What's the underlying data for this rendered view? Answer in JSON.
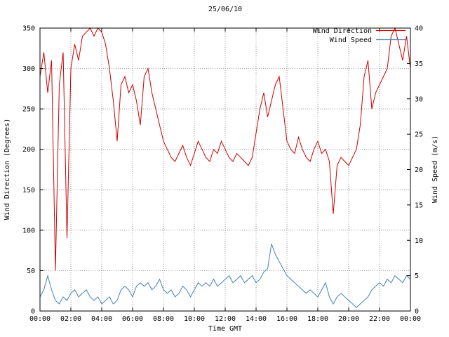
{
  "chart_data": {
    "type": "line",
    "title": "25/06/10",
    "xlabel": "Time GMT",
    "grid": true,
    "legend_position": "top-right-inside",
    "x_tick_labels": [
      "00:00",
      "02:00",
      "04:00",
      "06:00",
      "08:00",
      "10:00",
      "12:00",
      "14:00",
      "16:00",
      "18:00",
      "20:00",
      "22:00",
      "00:00"
    ],
    "x_tick_step_hours": 2,
    "x_range_hours": [
      0,
      24
    ],
    "y_left": {
      "label": "Wind Direction (Degrees)",
      "min": 0,
      "max": 350,
      "tick_step": 50
    },
    "y_right": {
      "label": "Wind Speed (m/s)",
      "min": 0,
      "max": 40,
      "tick_step": 5
    },
    "x_hours": [
      0,
      0.25,
      0.5,
      0.75,
      1,
      1.25,
      1.5,
      1.75,
      2,
      2.25,
      2.5,
      2.75,
      3,
      3.25,
      3.5,
      3.75,
      4,
      4.25,
      4.5,
      4.75,
      5,
      5.25,
      5.5,
      5.75,
      6,
      6.25,
      6.5,
      6.75,
      7,
      7.25,
      7.5,
      7.75,
      8,
      8.25,
      8.5,
      8.75,
      9,
      9.25,
      9.5,
      9.75,
      10,
      10.25,
      10.5,
      10.75,
      11,
      11.25,
      11.5,
      11.75,
      12,
      12.25,
      12.5,
      12.75,
      13,
      13.25,
      13.5,
      13.75,
      14,
      14.25,
      14.5,
      14.75,
      15,
      15.25,
      15.5,
      15.75,
      16,
      16.25,
      16.5,
      16.75,
      17,
      17.25,
      17.5,
      17.75,
      18,
      18.25,
      18.5,
      18.75,
      19,
      19.25,
      19.5,
      19.75,
      20,
      20.25,
      20.5,
      20.75,
      21,
      21.25,
      21.5,
      21.75,
      22,
      22.25,
      22.5,
      22.75,
      23,
      23.25,
      23.5,
      23.75,
      24
    ],
    "series": [
      {
        "name": "Wind Direction",
        "axis": "left",
        "unit": "Degrees",
        "color": "#cc0000",
        "values": [
          290,
          320,
          270,
          310,
          50,
          280,
          320,
          90,
          300,
          330,
          310,
          340,
          345,
          350,
          340,
          350,
          345,
          330,
          300,
          260,
          210,
          280,
          290,
          270,
          280,
          260,
          230,
          290,
          300,
          270,
          250,
          230,
          210,
          200,
          190,
          185,
          195,
          205,
          190,
          180,
          195,
          210,
          200,
          190,
          185,
          200,
          195,
          210,
          200,
          190,
          185,
          195,
          190,
          185,
          180,
          190,
          220,
          250,
          270,
          240,
          260,
          280,
          290,
          250,
          210,
          200,
          195,
          215,
          200,
          190,
          185,
          200,
          210,
          195,
          200,
          185,
          120,
          180,
          190,
          185,
          180,
          190,
          200,
          230,
          290,
          310,
          250,
          270,
          280,
          290,
          300,
          340,
          350,
          330,
          310,
          340,
          300
        ]
      },
      {
        "name": "Wind Speed",
        "axis": "right",
        "unit": "m/s",
        "color": "#4682b4",
        "values": [
          2,
          3,
          5,
          3,
          1.5,
          1,
          2,
          1.5,
          2.5,
          3,
          2,
          2.5,
          3,
          2,
          1.5,
          2,
          1,
          1.5,
          2,
          1,
          1.5,
          3,
          3.5,
          3,
          2,
          3.5,
          4,
          3.5,
          4,
          3,
          3.5,
          4.5,
          3,
          2.5,
          3,
          2,
          2.5,
          3.5,
          3,
          2,
          3,
          4,
          3.5,
          4,
          3.5,
          4.5,
          3.5,
          4,
          4.5,
          5,
          4,
          4.5,
          5,
          4,
          4.5,
          5,
          4,
          4.5,
          5.5,
          6,
          9.5,
          8,
          7,
          6,
          5,
          4.5,
          4,
          3.5,
          3,
          2.5,
          3,
          2.5,
          2,
          3,
          4,
          2,
          1,
          2,
          2.5,
          2,
          1.5,
          1,
          0.5,
          1,
          1.5,
          2,
          3,
          3.5,
          4,
          3.5,
          4.5,
          4,
          5,
          4.5,
          4,
          5,
          4.5
        ]
      }
    ]
  }
}
